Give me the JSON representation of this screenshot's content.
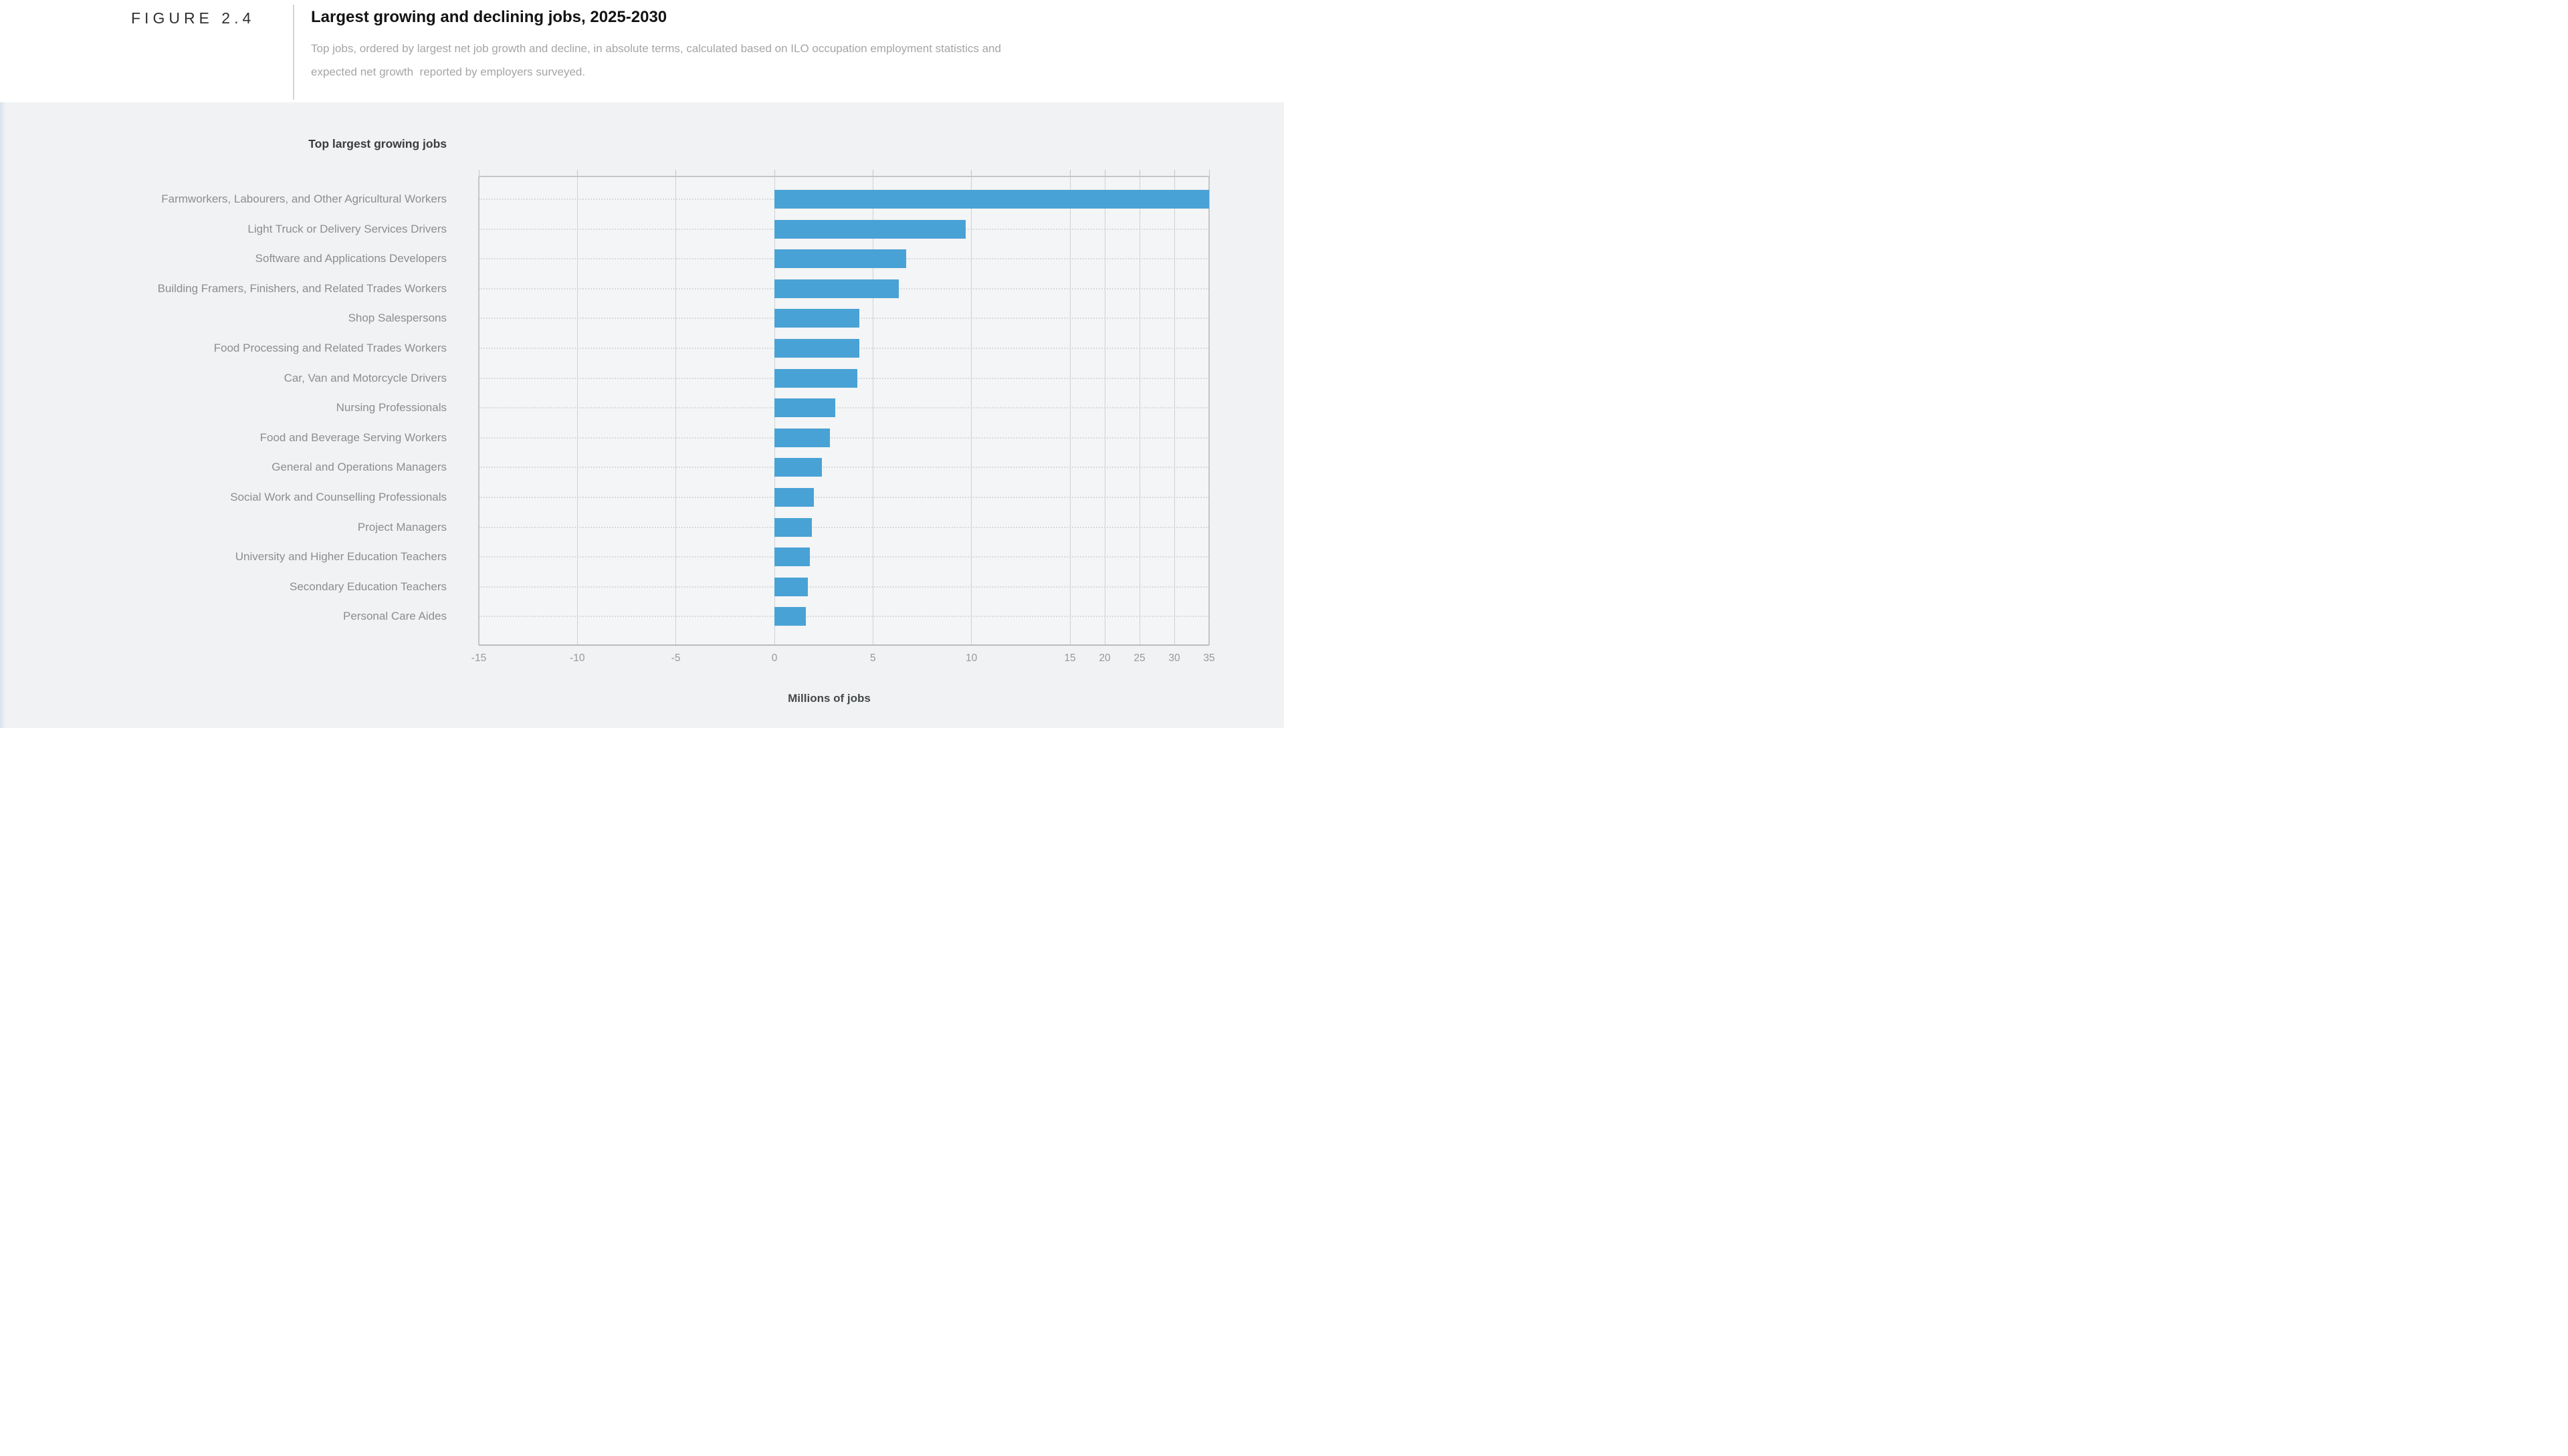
{
  "figure": {
    "label": "FIGURE 2.4",
    "title": "Largest growing and declining jobs, 2025-2030",
    "subtitle": "Top jobs, ordered by largest net job growth and decline, in absolute terms, calculated based on ILO occupation employment statistics and\nexpected net growth  reported by employers surveyed."
  },
  "section_heading": "Top largest growing jobs",
  "axis_title": "Millions of jobs",
  "chart_data": {
    "type": "bar",
    "orientation": "horizontal",
    "title": "Top largest growing jobs",
    "xlabel": "Millions of jobs",
    "units": "millions of jobs",
    "categories": [
      "Farmworkers, Labourers, and Other Agricultural Workers",
      "Light Truck or Delivery Services Drivers",
      "Software and Applications Developers",
      "Building Framers, Finishers, and Related Trades Workers",
      "Shop Salespersons",
      "Food Processing and Related Trades Workers",
      "Car, Van and Motorcycle Drivers",
      "Nursing Professionals",
      "Food and Beverage Serving Workers",
      "General and Operations Managers",
      "Social Work and Counselling Professionals",
      "Project Managers",
      "University and Higher Education Teachers",
      "Secondary Education Teachers",
      "Personal Care Aides"
    ],
    "values": [
      35,
      9.7,
      6.7,
      6.3,
      4.3,
      4.3,
      4.2,
      3.1,
      2.8,
      2.4,
      2.0,
      1.9,
      1.8,
      1.7,
      1.6
    ],
    "x_ticks": [
      -15,
      -10,
      -5,
      0,
      5,
      10,
      15,
      20,
      25,
      30,
      35
    ],
    "xlim": [
      -15,
      35
    ],
    "axis_note": "x axis compressed beyond 15 (scale break: ticks 20-35 closely spaced)",
    "grid": true,
    "row_guide_style": "dotted",
    "bar_color": "#49a2d5",
    "colors": {
      "band_bg": "#f1f2f3",
      "plot_bg": "#f4f5f6",
      "gridline": "#cfd1d3",
      "label_text": "#8b8d8f",
      "tick_text": "#96989a",
      "accent_strip": "#d7e2ee"
    }
  }
}
